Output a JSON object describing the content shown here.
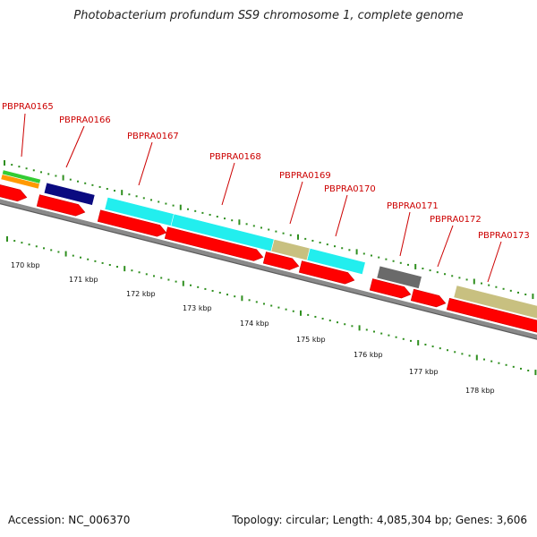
{
  "title": "Photobacterium profundum SS9 chromosome 1, complete genome",
  "footer": {
    "accession": "Accession: NC_006370",
    "stats": "Topology: circular; Length: 4,085,304 bp; Genes: 3,606"
  },
  "colors": {
    "label": "#cc0000",
    "cds_arrow": "#ff0000",
    "tick": "#2f8f1f",
    "backbone": "#777777",
    "navy": "#0a0a80",
    "cyan": "#22eeee",
    "khaki": "#c8c080",
    "gray": "#6a6a6a",
    "green": "#33cc33",
    "orange": "#ff9900"
  },
  "genes": [
    "PBPRA0165",
    "PBPRA0166",
    "PBPRA0167",
    "PBPRA0168",
    "PBPRA0169",
    "PBPRA0170",
    "PBPRA0171",
    "PBPRA0172",
    "PBPRA0173"
  ],
  "kbp_labels": [
    "170 kbp",
    "171 kbp",
    "172 kbp",
    "173 kbp",
    "174 kbp",
    "175 kbp",
    "176 kbp",
    "177 kbp",
    "178 kbp"
  ]
}
